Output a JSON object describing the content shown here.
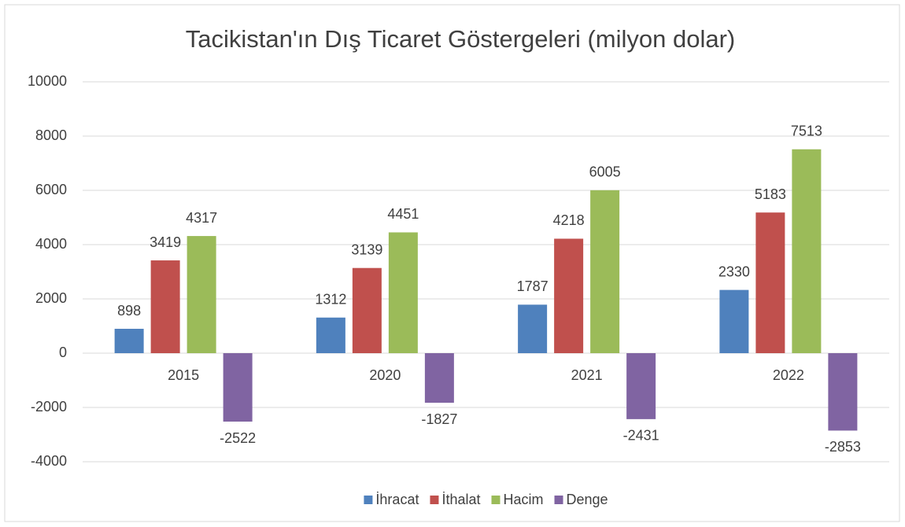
{
  "chart_data": {
    "type": "bar",
    "title": "Tacikistan'ın Dış Ticaret Göstergeleri (milyon dolar)",
    "categories": [
      "2015",
      "2020",
      "2021",
      "2022"
    ],
    "series": [
      {
        "name": "İhracat",
        "color": "#4f81bd",
        "values": [
          898,
          1312,
          1787,
          2330
        ]
      },
      {
        "name": "İthalat",
        "color": "#c0504d",
        "values": [
          3419,
          3139,
          4218,
          5183
        ]
      },
      {
        "name": "Hacim",
        "color": "#9bbb59",
        "values": [
          4317,
          4451,
          6005,
          7513
        ]
      },
      {
        "name": "Denge",
        "color": "#8064a2",
        "values": [
          -2522,
          -1827,
          -2431,
          -2853
        ]
      }
    ],
    "ylim": [
      -4000,
      10000
    ],
    "yticks": [
      -4000,
      -2000,
      0,
      2000,
      4000,
      6000,
      8000,
      10000
    ],
    "grid": true,
    "legend": "bottom"
  }
}
